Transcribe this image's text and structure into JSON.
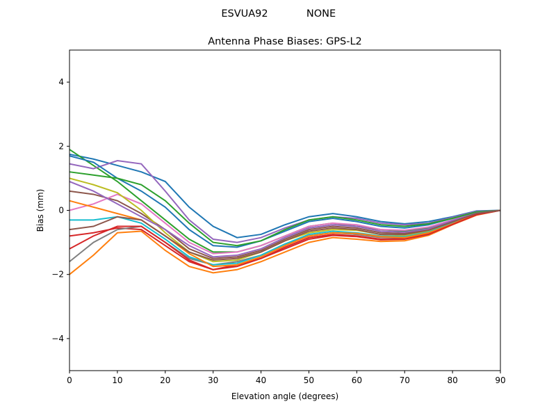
{
  "chart_data": {
    "type": "line",
    "suptitle_left": "ESVUA92",
    "suptitle_right": "NONE",
    "title": "Antenna Phase Biases: GPS-L2",
    "xlabel": "Elevation angle (degrees)",
    "ylabel": "Bias (mm)",
    "xlim": [
      0,
      90
    ],
    "ylim": [
      -5,
      5
    ],
    "xticks": [
      0,
      10,
      20,
      30,
      40,
      50,
      60,
      70,
      80,
      90
    ],
    "yticks": [
      -4,
      -2,
      0,
      2,
      4
    ],
    "ytick_labels": [
      "−4",
      "−2",
      "0",
      "2",
      "4"
    ],
    "grid": false,
    "x": [
      0,
      5,
      10,
      15,
      20,
      25,
      30,
      35,
      40,
      45,
      50,
      55,
      60,
      65,
      70,
      75,
      80,
      85,
      90
    ],
    "colors": [
      "#1f77b4",
      "#ff7f0e",
      "#2ca02c",
      "#d62728",
      "#9467bd",
      "#8c564b",
      "#e377c2",
      "#7f7f7f",
      "#bcbd22",
      "#17becf"
    ],
    "series": [
      {
        "values": [
          1.75,
          1.6,
          1.4,
          1.2,
          0.9,
          0.1,
          -0.5,
          -0.85,
          -0.75,
          -0.45,
          -0.2,
          -0.1,
          -0.2,
          -0.35,
          -0.42,
          -0.35,
          -0.2,
          -0.02,
          0
        ]
      },
      {
        "values": [
          -2.0,
          -1.4,
          -0.7,
          -0.65,
          -1.25,
          -1.75,
          -1.95,
          -1.85,
          -1.6,
          -1.3,
          -1.0,
          -0.85,
          -0.9,
          -0.97,
          -0.95,
          -0.78,
          -0.45,
          -0.15,
          0
        ]
      },
      {
        "values": [
          1.9,
          1.4,
          0.9,
          0.3,
          -0.3,
          -0.9,
          -1.3,
          -1.3,
          -1.1,
          -0.8,
          -0.5,
          -0.4,
          -0.5,
          -0.6,
          -0.65,
          -0.55,
          -0.3,
          -0.08,
          0
        ]
      },
      {
        "values": [
          -0.8,
          -0.7,
          -0.55,
          -0.6,
          -1.1,
          -1.6,
          -1.85,
          -1.7,
          -1.5,
          -1.15,
          -0.85,
          -0.75,
          -0.8,
          -0.9,
          -0.88,
          -0.72,
          -0.42,
          -0.13,
          0
        ]
      },
      {
        "values": [
          1.45,
          1.3,
          1.55,
          1.45,
          0.6,
          -0.3,
          -0.9,
          -1.0,
          -0.85,
          -0.55,
          -0.3,
          -0.2,
          -0.25,
          -0.4,
          -0.45,
          -0.4,
          -0.22,
          -0.03,
          0
        ]
      },
      {
        "values": [
          0.6,
          0.5,
          0.3,
          -0.1,
          -0.6,
          -1.2,
          -1.5,
          -1.45,
          -1.25,
          -0.9,
          -0.6,
          -0.5,
          -0.55,
          -0.7,
          -0.72,
          -0.6,
          -0.35,
          -0.1,
          0
        ]
      },
      {
        "values": [
          0.0,
          0.2,
          0.5,
          0.2,
          -0.4,
          -1.0,
          -1.35,
          -1.3,
          -1.1,
          -0.8,
          -0.5,
          -0.4,
          -0.45,
          -0.6,
          -0.62,
          -0.52,
          -0.3,
          -0.08,
          0
        ]
      },
      {
        "values": [
          -1.6,
          -1.0,
          -0.6,
          -0.5,
          -1.0,
          -1.5,
          -1.7,
          -1.6,
          -1.4,
          -1.05,
          -0.8,
          -0.7,
          -0.75,
          -0.85,
          -0.85,
          -0.7,
          -0.4,
          -0.12,
          0
        ]
      },
      {
        "values": [
          1.0,
          0.8,
          0.55,
          0.0,
          -0.7,
          -1.3,
          -1.6,
          -1.55,
          -1.3,
          -0.95,
          -0.7,
          -0.6,
          -0.62,
          -0.75,
          -0.78,
          -0.65,
          -0.38,
          -0.1,
          0
        ]
      },
      {
        "values": [
          -0.3,
          -0.3,
          -0.2,
          -0.4,
          -0.9,
          -1.45,
          -1.7,
          -1.65,
          -1.4,
          -1.05,
          -0.75,
          -0.65,
          -0.7,
          -0.8,
          -0.82,
          -0.68,
          -0.4,
          -0.12,
          0
        ]
      },
      {
        "values": [
          1.7,
          1.5,
          1.0,
          0.6,
          0.1,
          -0.6,
          -1.1,
          -1.15,
          -0.95,
          -0.65,
          -0.35,
          -0.25,
          -0.35,
          -0.5,
          -0.55,
          -0.45,
          -0.25,
          -0.05,
          0
        ]
      },
      {
        "values": [
          0.3,
          0.1,
          -0.1,
          -0.3,
          -0.8,
          -1.35,
          -1.75,
          -1.7,
          -1.45,
          -1.1,
          -0.8,
          -0.7,
          -0.72,
          -0.82,
          -0.85,
          -0.7,
          -0.42,
          -0.12,
          0
        ]
      },
      {
        "values": [
          1.2,
          1.1,
          1.0,
          0.8,
          0.3,
          -0.4,
          -1.0,
          -1.1,
          -0.95,
          -0.6,
          -0.3,
          -0.2,
          -0.3,
          -0.45,
          -0.5,
          -0.42,
          -0.25,
          -0.05,
          0
        ]
      },
      {
        "values": [
          -1.2,
          -0.8,
          -0.5,
          -0.5,
          -1.0,
          -1.55,
          -1.85,
          -1.75,
          -1.5,
          -1.2,
          -0.9,
          -0.78,
          -0.82,
          -0.92,
          -0.9,
          -0.75,
          -0.44,
          -0.14,
          0
        ]
      },
      {
        "values": [
          0.9,
          0.6,
          0.2,
          -0.2,
          -0.6,
          -1.1,
          -1.45,
          -1.4,
          -1.2,
          -0.85,
          -0.55,
          -0.45,
          -0.5,
          -0.65,
          -0.68,
          -0.58,
          -0.32,
          -0.09,
          0
        ]
      },
      {
        "values": [
          -0.6,
          -0.5,
          -0.2,
          -0.3,
          -0.8,
          -1.3,
          -1.55,
          -1.5,
          -1.3,
          -0.95,
          -0.65,
          -0.55,
          -0.6,
          -0.75,
          -0.75,
          -0.62,
          -0.36,
          -0.1,
          0
        ]
      }
    ]
  }
}
